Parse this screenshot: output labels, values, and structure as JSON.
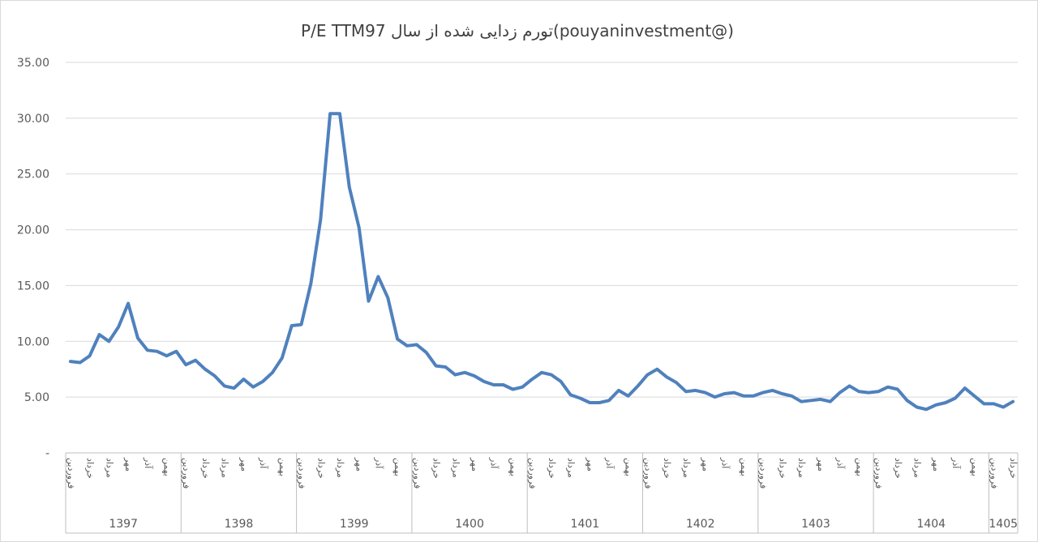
{
  "chart_data": {
    "type": "line",
    "title": "P/E TTMتورم زدایی شده از سال 97(pouyaninvestment@)",
    "ylim": [
      0,
      35
    ],
    "y_ticks": [
      "-",
      "5.00",
      "10.00",
      "15.00",
      "20.00",
      "25.00",
      "30.00",
      "35.00"
    ],
    "y_tick_values": [
      0,
      5,
      10,
      15,
      20,
      25,
      30,
      35
    ],
    "grid": true,
    "legend": "none",
    "series_color": "#4f81bd",
    "years": [
      {
        "label": "1397",
        "months": 12
      },
      {
        "label": "1398",
        "months": 12
      },
      {
        "label": "1399",
        "months": 12
      },
      {
        "label": "1400",
        "months": 12
      },
      {
        "label": "1401",
        "months": 12
      },
      {
        "label": "1402",
        "months": 12
      },
      {
        "label": "1403",
        "months": 12
      },
      {
        "label": "1404",
        "months": 12
      },
      {
        "label": "1405",
        "months": 3
      }
    ],
    "month_labels": [
      "فروردین",
      "خرداد",
      "مرداد",
      "مهر",
      "آذر",
      "بهمن"
    ],
    "month_label_indices": [
      0,
      2,
      4,
      6,
      8,
      10
    ],
    "values": [
      8.2,
      8.1,
      8.7,
      10.6,
      10.0,
      11.3,
      13.4,
      10.3,
      9.2,
      9.1,
      8.7,
      9.1,
      7.9,
      8.3,
      7.5,
      6.9,
      6.0,
      5.8,
      6.6,
      5.9,
      6.4,
      7.2,
      8.5,
      11.4,
      11.5,
      15.2,
      20.9,
      30.4,
      30.4,
      23.8,
      20.2,
      13.6,
      15.8,
      13.9,
      10.2,
      9.6,
      9.7,
      9.0,
      7.8,
      7.7,
      7.0,
      7.2,
      6.9,
      6.4,
      6.1,
      6.1,
      5.7,
      5.9,
      6.6,
      7.2,
      7.0,
      6.4,
      5.2,
      4.9,
      4.5,
      4.5,
      4.7,
      5.6,
      5.1,
      6.0,
      7.0,
      7.5,
      6.8,
      6.3,
      5.5,
      5.6,
      5.4,
      5.0,
      5.3,
      5.4,
      5.1,
      5.1,
      5.4,
      5.6,
      5.3,
      5.1,
      4.6,
      4.7,
      4.8,
      4.6,
      5.4,
      6.0,
      5.5,
      5.4,
      5.5,
      5.9,
      5.7,
      4.7,
      4.1,
      3.9,
      4.3,
      4.5,
      4.9,
      5.8,
      5.1,
      4.4,
      4.4,
      4.1,
      4.6
    ]
  }
}
